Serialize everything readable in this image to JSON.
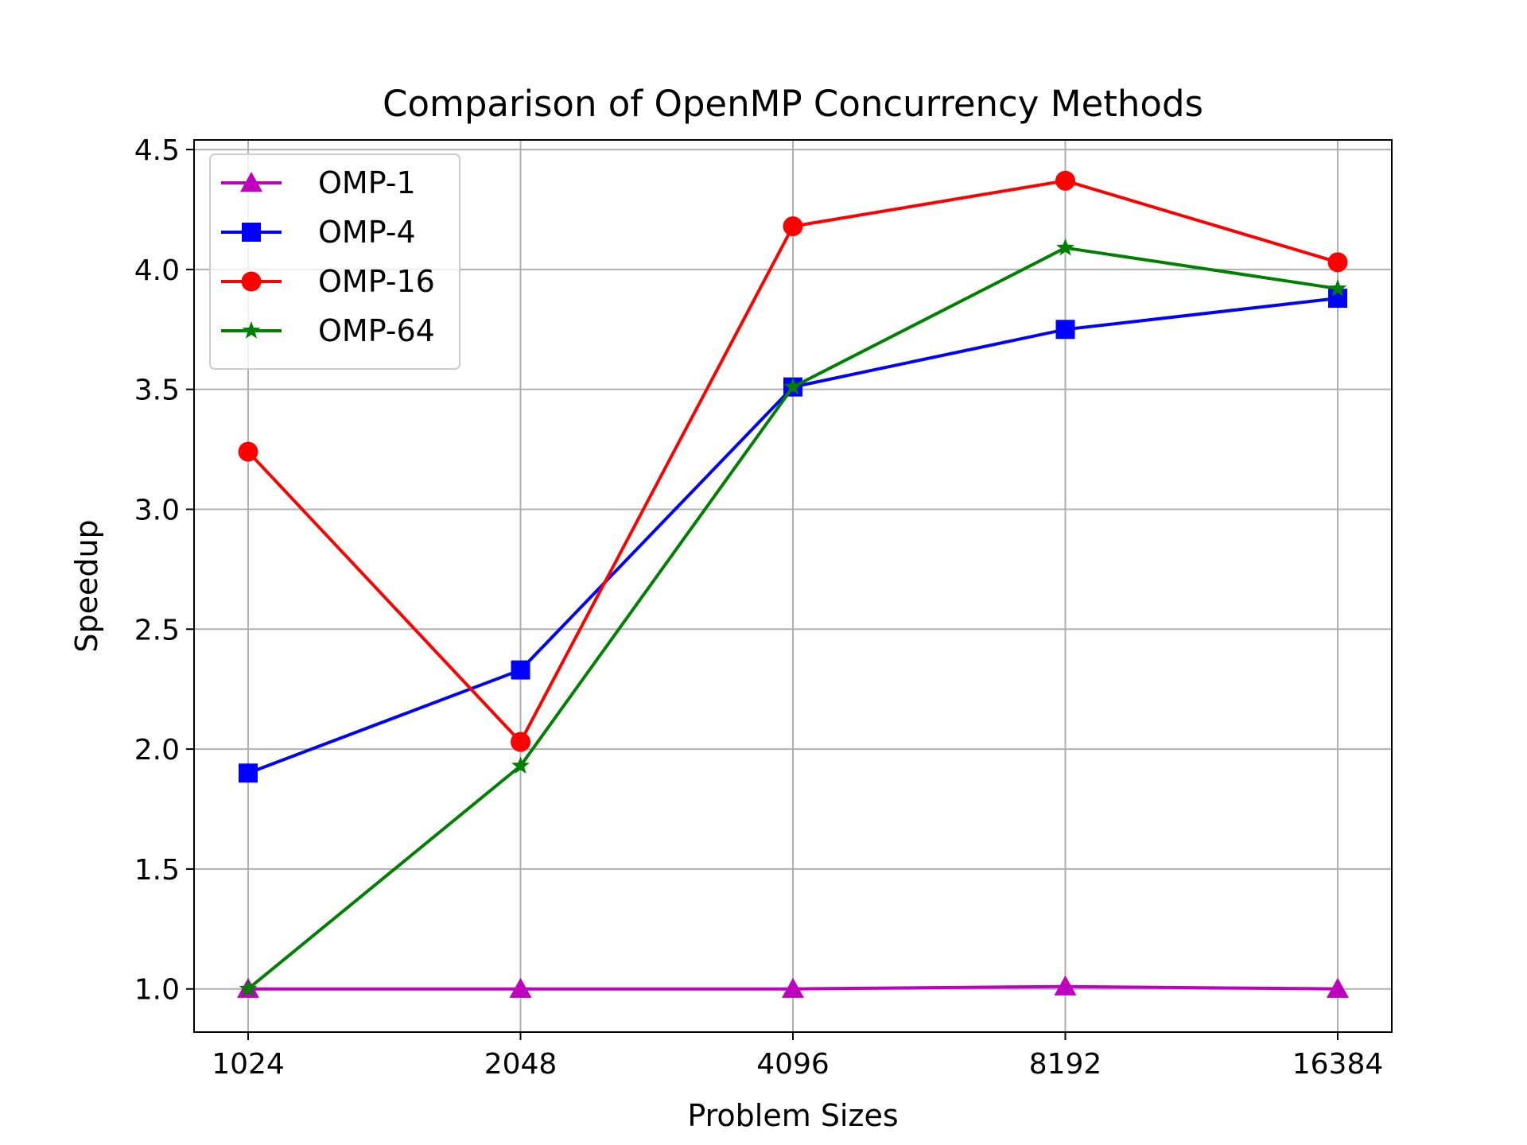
{
  "chart_data": {
    "type": "line",
    "title": "Comparison of OpenMP Concurrency Methods",
    "xlabel": "Problem Sizes",
    "ylabel": "Speedup",
    "categories": [
      "1024",
      "2048",
      "4096",
      "8192",
      "16384"
    ],
    "ylim": [
      0.82,
      4.54
    ],
    "yticks": [
      {
        "value": 1.0,
        "label": "1.0"
      },
      {
        "value": 1.5,
        "label": "1.5"
      },
      {
        "value": 2.0,
        "label": "2.0"
      },
      {
        "value": 2.5,
        "label": "2.5"
      },
      {
        "value": 3.0,
        "label": "3.0"
      },
      {
        "value": 3.5,
        "label": "3.5"
      },
      {
        "value": 4.0,
        "label": "4.0"
      },
      {
        "value": 4.5,
        "label": "4.5"
      }
    ],
    "grid": true,
    "legend_position": "upper left",
    "series": [
      {
        "name": "OMP-1",
        "color": "#bf00bf",
        "marker": "triangle",
        "values": [
          1.0,
          1.0,
          1.0,
          1.01,
          1.0
        ]
      },
      {
        "name": "OMP-4",
        "color": "#0000ff",
        "marker": "square",
        "values": [
          1.9,
          2.33,
          3.51,
          3.75,
          3.88
        ]
      },
      {
        "name": "OMP-16",
        "color": "#ff0000",
        "marker": "circle",
        "values": [
          3.24,
          2.03,
          4.18,
          4.37,
          4.03
        ]
      },
      {
        "name": "OMP-64",
        "color": "#008000",
        "marker": "star",
        "values": [
          1.0,
          1.93,
          3.51,
          4.09,
          3.92
        ]
      }
    ]
  }
}
